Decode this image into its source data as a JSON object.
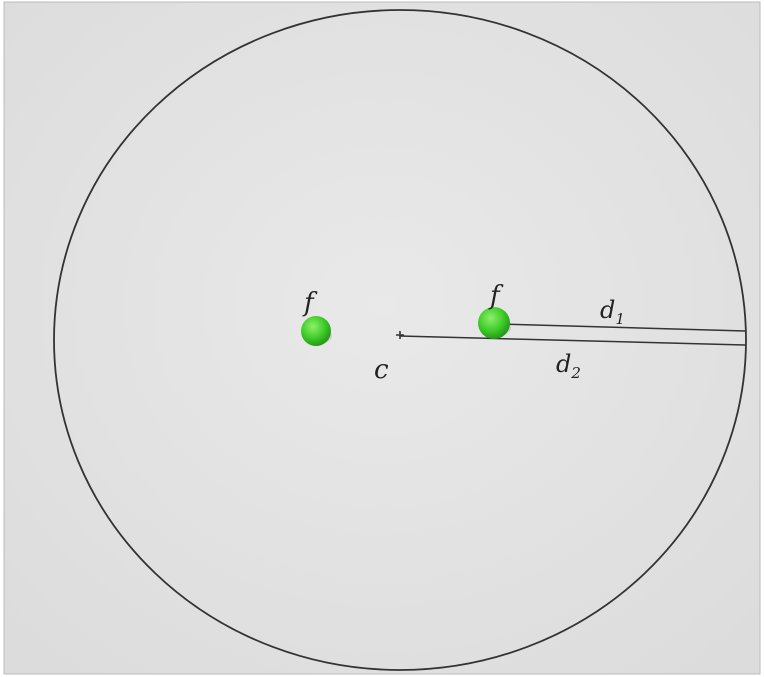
{
  "labels": [
    "f",
    "f",
    "c"
  ],
  "distances": [
    {
      "text": "d",
      "sub": "1"
    },
    {
      "text": "d",
      "sub": "2"
    }
  ]
}
